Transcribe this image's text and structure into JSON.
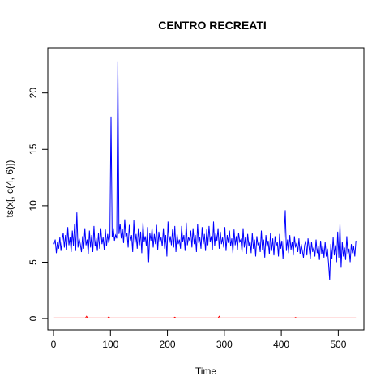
{
  "chart_data": {
    "type": "line",
    "title": "CENTRO RECREATI",
    "xlabel": "Time",
    "ylabel": "ts(x[, c(4, 6)])",
    "xlim": [
      -10,
      545
    ],
    "ylim": [
      -1,
      24
    ],
    "x_ticks": [
      0,
      100,
      200,
      300,
      400,
      500
    ],
    "y_ticks": [
      0,
      5,
      10,
      15,
      20
    ],
    "grid": false,
    "legend": "none",
    "series": [
      {
        "color": "#0000ff",
        "points": [
          [
            1,
            6.6
          ],
          [
            3,
            7.0
          ],
          [
            5,
            5.8
          ],
          [
            7,
            6.8
          ],
          [
            9,
            6.2
          ],
          [
            11,
            7.2
          ],
          [
            13,
            6.0
          ],
          [
            15,
            6.9
          ],
          [
            17,
            7.6
          ],
          [
            19,
            6.3
          ],
          [
            21,
            7.4
          ],
          [
            23,
            6.1
          ],
          [
            25,
            8.1
          ],
          [
            27,
            6.5
          ],
          [
            29,
            7.2
          ],
          [
            31,
            5.9
          ],
          [
            33,
            7.8
          ],
          [
            35,
            6.4
          ],
          [
            37,
            8.4
          ],
          [
            39,
            6.0
          ],
          [
            41,
            9.4
          ],
          [
            43,
            6.3
          ],
          [
            45,
            7.1
          ],
          [
            47,
            6.6
          ],
          [
            49,
            5.9
          ],
          [
            51,
            7.3
          ],
          [
            53,
            6.2
          ],
          [
            55,
            8.0
          ],
          [
            57,
            6.5
          ],
          [
            59,
            7.0
          ],
          [
            61,
            5.7
          ],
          [
            63,
            7.8
          ],
          [
            65,
            6.3
          ],
          [
            67,
            7.4
          ],
          [
            69,
            5.9
          ],
          [
            71,
            8.2
          ],
          [
            73,
            6.4
          ],
          [
            75,
            7.1
          ],
          [
            77,
            6.0
          ],
          [
            79,
            7.6
          ],
          [
            81,
            6.2
          ],
          [
            83,
            8.0
          ],
          [
            85,
            6.6
          ],
          [
            87,
            7.2
          ],
          [
            89,
            6.1
          ],
          [
            91,
            7.9
          ],
          [
            93,
            6.4
          ],
          [
            95,
            7.5
          ],
          [
            97,
            6.7
          ],
          [
            99,
            7.3
          ],
          [
            101,
            17.9
          ],
          [
            103,
            7.2
          ],
          [
            105,
            8.0
          ],
          [
            107,
            6.9
          ],
          [
            109,
            7.4
          ],
          [
            111,
            7.1
          ],
          [
            113,
            22.8
          ],
          [
            115,
            7.5
          ],
          [
            117,
            8.4
          ],
          [
            119,
            7.1
          ],
          [
            121,
            7.9
          ],
          [
            123,
            6.7
          ],
          [
            125,
            8.8
          ],
          [
            127,
            7.2
          ],
          [
            129,
            7.6
          ],
          [
            131,
            6.3
          ],
          [
            133,
            8.3
          ],
          [
            135,
            6.9
          ],
          [
            137,
            7.4
          ],
          [
            139,
            5.9
          ],
          [
            141,
            8.7
          ],
          [
            143,
            6.6
          ],
          [
            145,
            7.5
          ],
          [
            147,
            6.2
          ],
          [
            149,
            8.0
          ],
          [
            151,
            6.5
          ],
          [
            153,
            7.7
          ],
          [
            155,
            5.8
          ],
          [
            157,
            8.5
          ],
          [
            159,
            6.8
          ],
          [
            161,
            7.3
          ],
          [
            163,
            6.4
          ],
          [
            165,
            8.1
          ],
          [
            167,
            5.0
          ],
          [
            169,
            7.6
          ],
          [
            171,
            6.9
          ],
          [
            173,
            8.0
          ],
          [
            175,
            6.3
          ],
          [
            177,
            7.5
          ],
          [
            179,
            6.6
          ],
          [
            181,
            8.3
          ],
          [
            183,
            6.1
          ],
          [
            185,
            7.7
          ],
          [
            187,
            6.8
          ],
          [
            189,
            7.2
          ],
          [
            191,
            6.4
          ],
          [
            193,
            8.0
          ],
          [
            195,
            6.2
          ],
          [
            197,
            7.4
          ],
          [
            199,
            5.5
          ],
          [
            201,
            8.6
          ],
          [
            203,
            6.7
          ],
          [
            205,
            7.3
          ],
          [
            207,
            6.5
          ],
          [
            209,
            7.9
          ],
          [
            211,
            6.3
          ],
          [
            213,
            8.2
          ],
          [
            215,
            5.9
          ],
          [
            217,
            7.5
          ],
          [
            219,
            6.6
          ],
          [
            221,
            7.0
          ],
          [
            223,
            6.2
          ],
          [
            225,
            8.2
          ],
          [
            227,
            6.8
          ],
          [
            229,
            7.4
          ],
          [
            231,
            6.0
          ],
          [
            233,
            8.5
          ],
          [
            235,
            6.5
          ],
          [
            237,
            7.2
          ],
          [
            239,
            6.9
          ],
          [
            241,
            7.8
          ],
          [
            243,
            6.3
          ],
          [
            245,
            8.0
          ],
          [
            247,
            6.6
          ],
          [
            249,
            7.4
          ],
          [
            251,
            5.9
          ],
          [
            253,
            8.4
          ],
          [
            255,
            6.7
          ],
          [
            257,
            7.2
          ],
          [
            259,
            6.2
          ],
          [
            261,
            8.1
          ],
          [
            263,
            6.6
          ],
          [
            265,
            7.5
          ],
          [
            267,
            6.0
          ],
          [
            269,
            7.9
          ],
          [
            271,
            6.5
          ],
          [
            273,
            8.2
          ],
          [
            275,
            6.8
          ],
          [
            277,
            7.3
          ],
          [
            279,
            6.1
          ],
          [
            281,
            8.6
          ],
          [
            283,
            6.4
          ],
          [
            285,
            7.6
          ],
          [
            287,
            6.9
          ],
          [
            289,
            8.0
          ],
          [
            291,
            6.2
          ],
          [
            293,
            7.7
          ],
          [
            295,
            6.6
          ],
          [
            297,
            7.2
          ],
          [
            299,
            6.3
          ],
          [
            301,
            8.1
          ],
          [
            303,
            6.0
          ],
          [
            305,
            7.4
          ],
          [
            307,
            6.7
          ],
          [
            309,
            7.8
          ],
          [
            311,
            6.4
          ],
          [
            313,
            7.1
          ],
          [
            315,
            5.8
          ],
          [
            317,
            7.9
          ],
          [
            319,
            6.5
          ],
          [
            321,
            7.3
          ],
          [
            323,
            6.1
          ],
          [
            325,
            7.6
          ],
          [
            327,
            6.8
          ],
          [
            329,
            7.0
          ],
          [
            331,
            5.9
          ],
          [
            333,
            8.0
          ],
          [
            335,
            6.3
          ],
          [
            337,
            7.2
          ],
          [
            339,
            5.7
          ],
          [
            341,
            7.5
          ],
          [
            343,
            6.4
          ],
          [
            345,
            6.9
          ],
          [
            347,
            5.8
          ],
          [
            349,
            7.6
          ],
          [
            351,
            6.2
          ],
          [
            353,
            7.0
          ],
          [
            355,
            5.5
          ],
          [
            357,
            7.3
          ],
          [
            359,
            6.5
          ],
          [
            361,
            6.8
          ],
          [
            363,
            5.9
          ],
          [
            365,
            7.8
          ],
          [
            367,
            6.1
          ],
          [
            369,
            7.0
          ],
          [
            371,
            5.4
          ],
          [
            373,
            7.4
          ],
          [
            375,
            6.3
          ],
          [
            377,
            6.9
          ],
          [
            379,
            5.7
          ],
          [
            381,
            7.6
          ],
          [
            383,
            6.0
          ],
          [
            385,
            7.1
          ],
          [
            387,
            5.6
          ],
          [
            389,
            7.3
          ],
          [
            391,
            6.4
          ],
          [
            393,
            6.8
          ],
          [
            395,
            5.5
          ],
          [
            397,
            7.5
          ],
          [
            399,
            6.2
          ],
          [
            401,
            6.9
          ],
          [
            403,
            5.3
          ],
          [
            405,
            7.2
          ],
          [
            407,
            9.6
          ],
          [
            409,
            6.0
          ],
          [
            411,
            7.0
          ],
          [
            413,
            5.8
          ],
          [
            415,
            7.4
          ],
          [
            417,
            6.1
          ],
          [
            419,
            6.8
          ],
          [
            421,
            5.6
          ],
          [
            423,
            7.3
          ],
          [
            425,
            6.3
          ],
          [
            427,
            6.7
          ],
          [
            429,
            5.9
          ],
          [
            431,
            7.1
          ],
          [
            433,
            5.7
          ],
          [
            435,
            6.6
          ],
          [
            437,
            6.0
          ],
          [
            439,
            5.4
          ],
          [
            441,
            6.5
          ],
          [
            443,
            6.9
          ],
          [
            445,
            5.6
          ],
          [
            447,
            7.1
          ],
          [
            449,
            6.2
          ],
          [
            451,
            5.3
          ],
          [
            453,
            6.8
          ],
          [
            455,
            5.9
          ],
          [
            457,
            6.3
          ],
          [
            459,
            5.5
          ],
          [
            461,
            7.0
          ],
          [
            463,
            5.8
          ],
          [
            465,
            6.4
          ],
          [
            467,
            5.2
          ],
          [
            469,
            6.9
          ],
          [
            471,
            5.7
          ],
          [
            473,
            6.5
          ],
          [
            475,
            5.4
          ],
          [
            477,
            6.8
          ],
          [
            479,
            5.5
          ],
          [
            481,
            6.2
          ],
          [
            483,
            4.9
          ],
          [
            485,
            3.4
          ],
          [
            487,
            6.6
          ],
          [
            489,
            5.3
          ],
          [
            491,
            7.2
          ],
          [
            493,
            5.6
          ],
          [
            495,
            6.5
          ],
          [
            497,
            5.0
          ],
          [
            499,
            7.7
          ],
          [
            501,
            5.4
          ],
          [
            503,
            8.4
          ],
          [
            505,
            4.5
          ],
          [
            507,
            6.8
          ],
          [
            509,
            5.5
          ],
          [
            511,
            6.3
          ],
          [
            513,
            5.2
          ],
          [
            515,
            7.3
          ],
          [
            517,
            5.7
          ],
          [
            519,
            6.2
          ],
          [
            521,
            5.0
          ],
          [
            523,
            6.6
          ],
          [
            525,
            5.8
          ],
          [
            527,
            6.4
          ],
          [
            529,
            5.5
          ],
          [
            531,
            6.9
          ]
        ]
      },
      {
        "color": "#ff0000",
        "points": [
          [
            1,
            0.05
          ],
          [
            56,
            0.05
          ],
          [
            58,
            0.2
          ],
          [
            60,
            0.05
          ],
          [
            95,
            0.05
          ],
          [
            97,
            0.15
          ],
          [
            99,
            0.05
          ],
          [
            211,
            0.05
          ],
          [
            213,
            0.12
          ],
          [
            215,
            0.05
          ],
          [
            289,
            0.05
          ],
          [
            291,
            0.2
          ],
          [
            293,
            0.05
          ],
          [
            423,
            0.05
          ],
          [
            425,
            0.1
          ],
          [
            427,
            0.05
          ],
          [
            531,
            0.05
          ]
        ]
      }
    ]
  }
}
